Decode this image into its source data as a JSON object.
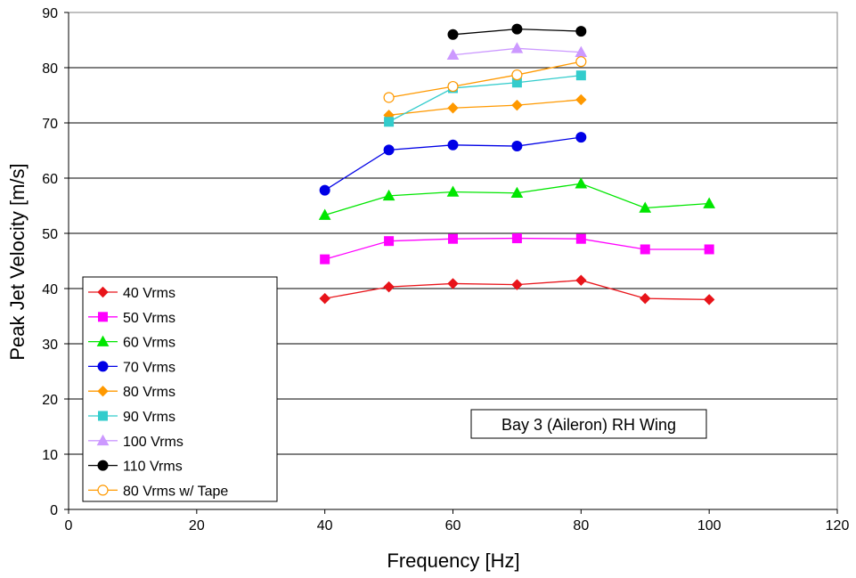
{
  "chart_data": {
    "type": "line",
    "title": "",
    "xlabel": "Frequency [Hz]",
    "ylabel": "Peak Jet Velocity [m/s]",
    "xlim": [
      0,
      120
    ],
    "ylim": [
      0,
      90
    ],
    "xticks": [
      "0",
      "20",
      "40",
      "60",
      "80",
      "100",
      "120"
    ],
    "yticks": [
      "0",
      "10",
      "20",
      "30",
      "40",
      "50",
      "60",
      "70",
      "80",
      "90"
    ],
    "grid": "horizontal",
    "legend_position": "bottom-left",
    "annotation": "Bay 3 (Aileron) RH Wing",
    "series": [
      {
        "name": "40 Vrms",
        "color": "#e8141a",
        "marker": "diamond",
        "filled": true,
        "x": [
          40,
          50,
          60,
          70,
          80,
          90,
          100
        ],
        "y": [
          38.2,
          40.3,
          40.9,
          40.7,
          41.5,
          38.2,
          38.0
        ]
      },
      {
        "name": "50 Vrms",
        "color": "#ff00ff",
        "marker": "square",
        "filled": true,
        "x": [
          40,
          50,
          60,
          70,
          80,
          90,
          100
        ],
        "y": [
          45.3,
          48.6,
          49.0,
          49.1,
          49.0,
          47.1,
          47.1
        ]
      },
      {
        "name": "60 Vrms",
        "color": "#00e600",
        "marker": "triangle",
        "filled": true,
        "x": [
          40,
          50,
          60,
          70,
          80,
          90,
          100
        ],
        "y": [
          53.3,
          56.8,
          57.5,
          57.3,
          59.0,
          54.6,
          55.4
        ]
      },
      {
        "name": "70 Vrms",
        "color": "#0000e6",
        "marker": "circle",
        "filled": true,
        "x": [
          40,
          50,
          60,
          70,
          80
        ],
        "y": [
          57.8,
          65.1,
          66.0,
          65.8,
          67.4
        ]
      },
      {
        "name": "80 Vrms",
        "color": "#ff9900",
        "marker": "diamond",
        "filled": true,
        "x": [
          50,
          60,
          70,
          80
        ],
        "y": [
          71.4,
          72.7,
          73.2,
          74.2
        ]
      },
      {
        "name": "90 Vrms",
        "color": "#33cccc",
        "marker": "square",
        "filled": true,
        "x": [
          50,
          60,
          70,
          80
        ],
        "y": [
          70.2,
          76.3,
          77.3,
          78.6
        ]
      },
      {
        "name": "100 Vrms",
        "color": "#cc99ff",
        "marker": "triangle",
        "filled": true,
        "x": [
          60,
          70,
          80
        ],
        "y": [
          82.3,
          83.5,
          82.8
        ]
      },
      {
        "name": "110 Vrms",
        "color": "#000000",
        "marker": "circle",
        "filled": true,
        "x": [
          60,
          70,
          80
        ],
        "y": [
          86.0,
          87.0,
          86.6
        ]
      },
      {
        "name": "80 Vrms w/ Tape",
        "color": "#ff9900",
        "marker": "circle",
        "filled": false,
        "x": [
          50,
          60,
          70,
          80
        ],
        "y": [
          74.6,
          76.6,
          78.7,
          81.1
        ]
      }
    ]
  }
}
